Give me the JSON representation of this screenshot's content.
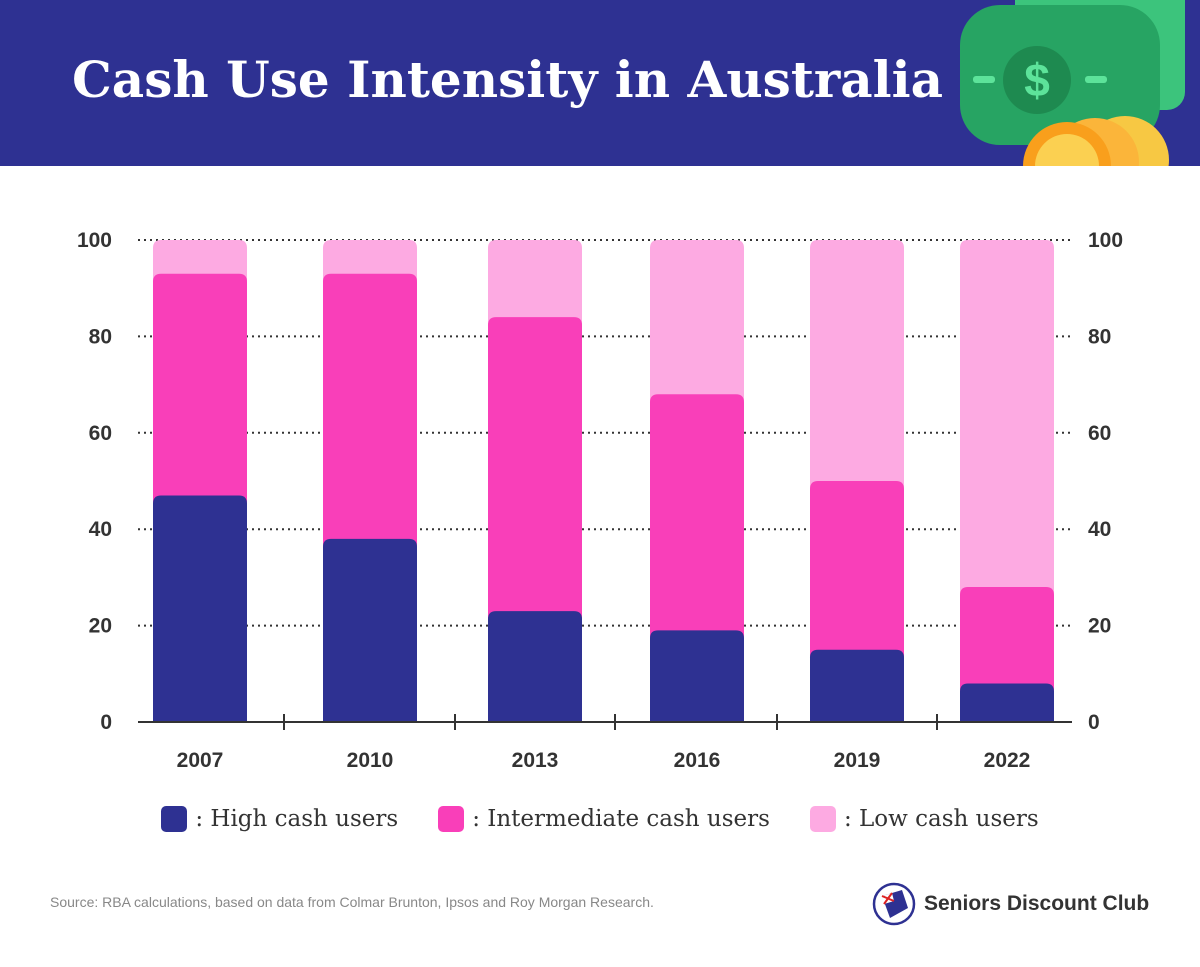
{
  "header": {
    "title": "Cash Use Intensity in Australia"
  },
  "colors": {
    "high": "#2e3192",
    "intermediate": "#f93fb9",
    "low": "#fdaae2",
    "header": "#2e3192"
  },
  "chart_data": {
    "type": "bar",
    "stacked": true,
    "title": "Cash Use Intensity in Australia",
    "categories": [
      "2007",
      "2010",
      "2013",
      "2016",
      "2019",
      "2022"
    ],
    "series": [
      {
        "name": "High cash users",
        "values": [
          47,
          38,
          23,
          19,
          15,
          8
        ]
      },
      {
        "name": "Intermediate cash users",
        "values": [
          46,
          55,
          61,
          49,
          35,
          20
        ]
      },
      {
        "name": "Low cash users",
        "values": [
          7,
          7,
          16,
          32,
          50,
          72
        ]
      }
    ],
    "ylim": [
      0,
      100
    ],
    "yticks": [
      "0",
      "20",
      "40",
      "60",
      "80",
      "100"
    ],
    "grid": true,
    "legend_position": "bottom"
  },
  "legend": [
    ": High cash users",
    ": Intermediate cash users",
    ": Low cash users"
  ],
  "footer": {
    "source": "Source: RBA calculations, based on data from Colmar Brunton, Ipsos and Roy Morgan Research.",
    "brand": "Seniors Discount Club"
  }
}
